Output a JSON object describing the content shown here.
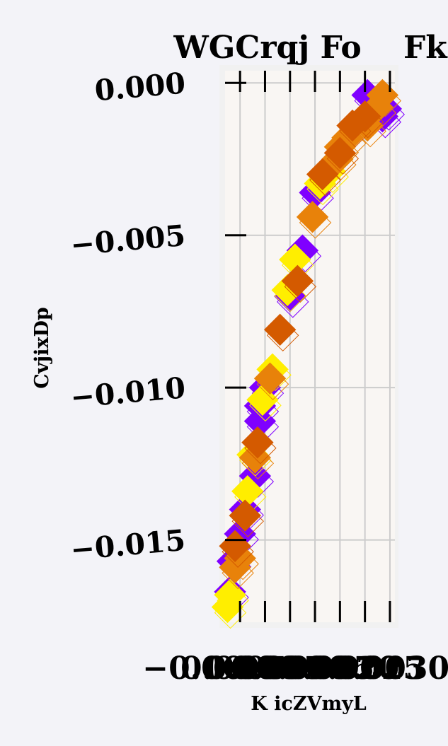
{
  "chart_data": {
    "type": "scatter",
    "title": "WGCrqj Fo",
    "title_right_fragment": "Fk",
    "xlabel": "K icZVmyL",
    "ylabel": "CvjixDp",
    "xlim": [
      -0.0003,
      0.0031
    ],
    "ylim": [
      -0.0177,
      0.0004
    ],
    "y_ticks": [
      0.0,
      -0.005,
      -0.01,
      -0.015
    ],
    "y_tick_labels": [
      "0.000",
      "−0.005",
      "−0.010",
      "−0.015"
    ],
    "x_tick_labels": [
      "−0.0005",
      "0.0000",
      "0.0005",
      "0.0010",
      "0.0015",
      "0.0020",
      "0.0025",
      "0.0030"
    ],
    "x_tick_values": [
      -0.0005,
      0.0,
      0.0005,
      0.001,
      0.0015,
      0.002,
      0.0025,
      0.003
    ],
    "grid": true,
    "marker": "diamond",
    "colors": {
      "purple": "#7f00ff",
      "yellow": "#ffee00",
      "orange": "#e8820a",
      "dark_orange": "#d45a00",
      "plot_bg": "#f9f6f3",
      "grid": "#cccccc",
      "page_bg": "#f3f3f8"
    },
    "series": [
      {
        "color": "purple",
        "points": [
          [
            0.00292,
            -0.00085
          ],
          [
            0.00255,
            -0.0004
          ],
          [
            0.00285,
            -0.0011
          ],
          [
            0.0015,
            -0.0036
          ],
          [
            0.00125,
            -0.0055
          ],
          [
            0.001,
            -0.007
          ],
          [
            0.0005,
            -0.01
          ],
          [
            0.0004,
            -0.0106
          ],
          [
            0.0004,
            -0.0111
          ],
          [
            0.0003,
            -0.0129
          ],
          [
            0.0001,
            -0.014
          ],
          [
            0.0,
            -0.0148
          ],
          [
            -0.00015,
            -0.0157
          ],
          [
            -0.0002,
            -0.0167
          ]
        ]
      },
      {
        "color": "yellow",
        "points": [
          [
            0.0018,
            -0.0029
          ],
          [
            0.0016,
            -0.0033
          ],
          [
            0.0011,
            -0.0058
          ],
          [
            0.00095,
            -0.0068
          ],
          [
            0.00065,
            -0.0094
          ],
          [
            0.00045,
            -0.0104
          ],
          [
            0.00025,
            -0.0122
          ],
          [
            0.00015,
            -0.0134
          ],
          [
            -0.0002,
            -0.0168
          ],
          [
            -0.00025,
            -0.0172
          ]
        ]
      },
      {
        "color": "orange",
        "points": [
          [
            0.00285,
            -0.0004
          ],
          [
            0.00275,
            -0.0008
          ],
          [
            0.00255,
            -0.0014
          ],
          [
            0.00215,
            -0.0018
          ],
          [
            0.002,
            -0.0021
          ],
          [
            0.00195,
            -0.0025
          ],
          [
            0.00145,
            -0.0044
          ],
          [
            0.0006,
            -0.0097
          ],
          [
            0.0003,
            -0.0123
          ],
          [
            0.0,
            -0.0156
          ],
          [
            -0.0001,
            -0.0159
          ]
        ]
      },
      {
        "color": "dark_orange",
        "points": [
          [
            0.0025,
            -0.0011
          ],
          [
            0.00225,
            -0.0014
          ],
          [
            0.002,
            -0.0023
          ],
          [
            0.00165,
            -0.003
          ],
          [
            0.00115,
            -0.0065
          ],
          [
            0.0008,
            -0.0081
          ],
          [
            0.00035,
            -0.0118
          ],
          [
            0.0001,
            -0.0142
          ],
          [
            -0.0001,
            -0.0152
          ]
        ]
      }
    ]
  }
}
